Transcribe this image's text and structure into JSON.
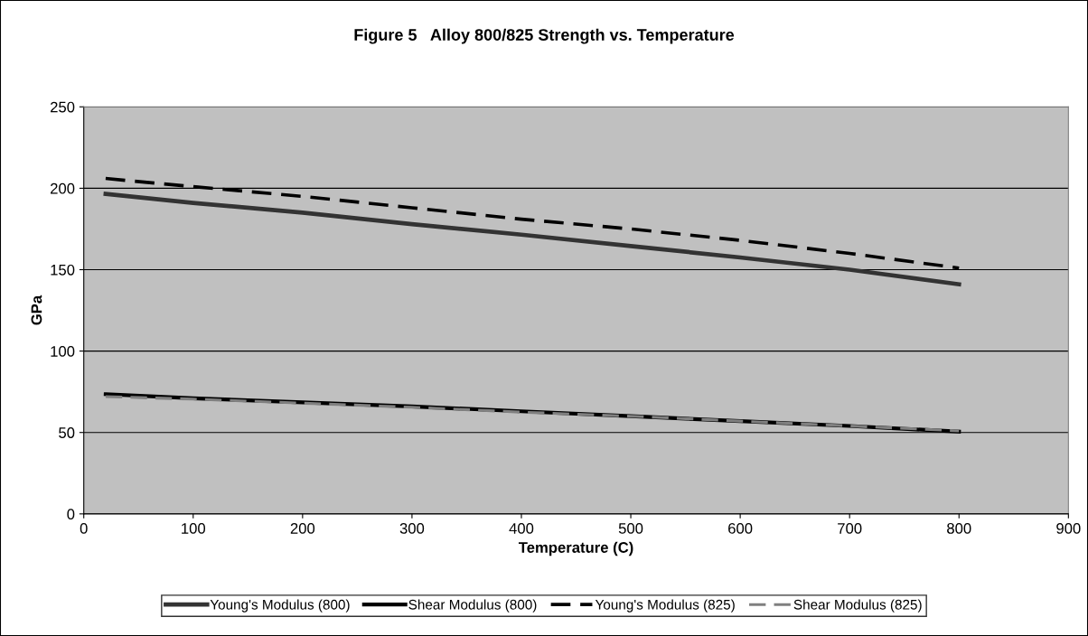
{
  "chart_data": {
    "type": "line",
    "title": "Figure 5   Alloy 800/825 Strength vs. Temperature",
    "xlabel": "Temperature (C)",
    "ylabel": "GPa",
    "x": [
      20,
      100,
      200,
      300,
      400,
      500,
      600,
      700,
      800
    ],
    "series": [
      {
        "name": "Young's Modulus (800)",
        "color": "#333333",
        "line_style": "solid",
        "values": [
          196.5,
          191,
          185,
          178,
          171.5,
          164.5,
          157.5,
          150,
          141
        ]
      },
      {
        "name": "Shear Modulus (800)",
        "color": "#000000",
        "line_style": "solid",
        "values": [
          73.5,
          71,
          68.5,
          66,
          63,
          60,
          57,
          54,
          50.5
        ]
      },
      {
        "name": "Young's Modulus (825)",
        "color": "#000000",
        "line_style": "dashed",
        "values": [
          206,
          201,
          195,
          188,
          181,
          175,
          168,
          160,
          151
        ]
      },
      {
        "name": "Shear Modulus (825)",
        "color": "#808080",
        "line_style": "dashed",
        "values": [
          72,
          70.5,
          68,
          65.5,
          62.5,
          60,
          57,
          54,
          51
        ]
      }
    ],
    "xlim": [
      0,
      900
    ],
    "xticks": [
      0,
      100,
      200,
      300,
      400,
      500,
      600,
      700,
      800,
      900
    ],
    "ylim": [
      0,
      250
    ],
    "yticks": [
      0,
      50,
      100,
      150,
      200,
      250
    ],
    "grid": "y",
    "legend": "bottom",
    "marker": "none"
  }
}
